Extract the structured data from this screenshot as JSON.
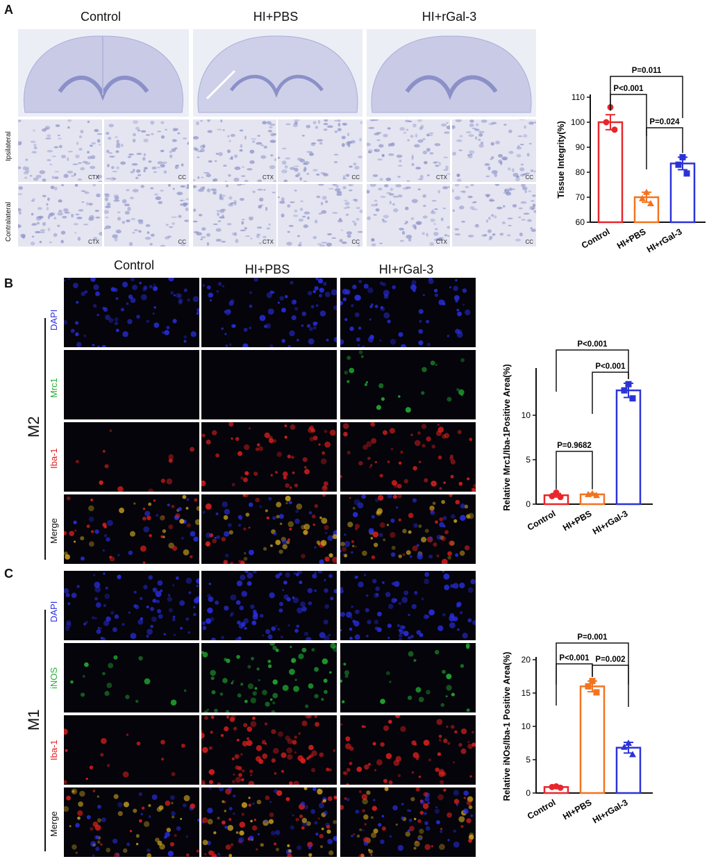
{
  "panels": {
    "A": {
      "letter": "A",
      "columns": [
        "Control",
        "HI+PBS",
        "HI+rGal-3"
      ],
      "row_labels": [
        "Ipsilateral",
        "Contralateral"
      ],
      "region_labels": [
        "CTX",
        "CC"
      ]
    },
    "B": {
      "letter": "B",
      "columns": [
        "Control",
        "HI+PBS",
        "HI+rGal-3"
      ],
      "group": "M2",
      "stains": [
        "DAPI",
        "Mrc1",
        "Iba-1",
        "Merge"
      ]
    },
    "C": {
      "letter": "C",
      "group": "M1",
      "stains": [
        "DAPI",
        "iNOS",
        "Iba-1",
        "Merge"
      ]
    }
  },
  "colors": {
    "control": "#e8262b",
    "hipbs": "#f4731e",
    "hirgal": "#2b33d6",
    "dapi": "#2a2ee0",
    "green": "#23b034",
    "red": "#e0201e"
  },
  "chart_data": [
    {
      "type": "bar",
      "categories": [
        "Control",
        "HI+PBS",
        "HI+rGal-3"
      ],
      "values": [
        100,
        70,
        83.5
      ],
      "errors": [
        3,
        2,
        2.5
      ],
      "points": [
        [
          106,
          100,
          97
        ],
        [
          72,
          69.5,
          67.5
        ],
        [
          86,
          83,
          79.5
        ]
      ],
      "markers": [
        "circle",
        "triangle",
        "square"
      ],
      "ylabel": "Tissue Integrity(%)",
      "ylim": [
        60,
        110
      ],
      "yticks": [
        60,
        70,
        80,
        90,
        100,
        110
      ],
      "comparisons": [
        {
          "from": 0,
          "to": 2,
          "label": "P=0.011"
        },
        {
          "from": 0,
          "to": 1,
          "label": "P<0.001"
        },
        {
          "from": 1,
          "to": 2,
          "label": "P=0.024"
        }
      ]
    },
    {
      "type": "bar",
      "categories": [
        "Control",
        "HI+PBS",
        "HI+rGal-3"
      ],
      "values": [
        1,
        1.1,
        12.8
      ],
      "errors": [
        0.2,
        0.1,
        0.8
      ],
      "points": [
        [
          1.3,
          0.9,
          0.8
        ],
        [
          1.2,
          1.1,
          1.0
        ],
        [
          13.5,
          12.8,
          11.9
        ]
      ],
      "markers": [
        "circle",
        "triangle",
        "square"
      ],
      "ylabel": "Relative Mrc1/Iba-1Positive Area(%)",
      "ylim": [
        0,
        15
      ],
      "yticks": [
        0,
        5,
        10
      ],
      "comparisons": [
        {
          "from": 0,
          "to": 2,
          "label": "P<0.001"
        },
        {
          "from": 1,
          "to": 2,
          "label": "P<0.001"
        },
        {
          "from": 0,
          "to": 1,
          "label": "P=0.9682"
        }
      ]
    },
    {
      "type": "bar",
      "categories": [
        "Control",
        "HI+PBS",
        "HI+rGal-3"
      ],
      "values": [
        0.9,
        16,
        6.8
      ],
      "errors": [
        0.15,
        0.8,
        0.8
      ],
      "points": [
        [
          1.0,
          0.9,
          0.8
        ],
        [
          16.8,
          16.0,
          15.1
        ],
        [
          7.5,
          6.9,
          5.8
        ]
      ],
      "markers": [
        "circle",
        "square",
        "triangle"
      ],
      "ylabel": "Relative iNOs/Iba-1 Positive Area(%)",
      "ylim": [
        0,
        20
      ],
      "yticks": [
        0,
        5,
        10,
        15,
        20
      ],
      "comparisons": [
        {
          "from": 0,
          "to": 2,
          "label": "P=0.001"
        },
        {
          "from": 0,
          "to": 1,
          "label": "P<0.001"
        },
        {
          "from": 1,
          "to": 2,
          "label": "P=0.002"
        }
      ]
    }
  ]
}
